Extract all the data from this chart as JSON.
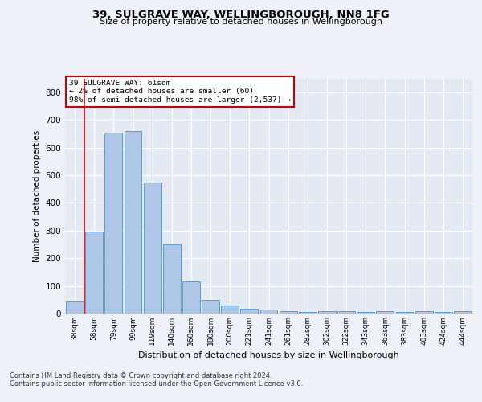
{
  "title1": "39, SULGRAVE WAY, WELLINGBOROUGH, NN8 1FG",
  "title2": "Size of property relative to detached houses in Wellingborough",
  "xlabel": "Distribution of detached houses by size in Wellingborough",
  "ylabel": "Number of detached properties",
  "categories": [
    "38sqm",
    "58sqm",
    "79sqm",
    "99sqm",
    "119sqm",
    "140sqm",
    "160sqm",
    "180sqm",
    "200sqm",
    "221sqm",
    "241sqm",
    "261sqm",
    "282sqm",
    "302sqm",
    "322sqm",
    "343sqm",
    "363sqm",
    "383sqm",
    "403sqm",
    "424sqm",
    "444sqm"
  ],
  "values": [
    45,
    295,
    655,
    660,
    475,
    250,
    115,
    50,
    28,
    17,
    15,
    10,
    7,
    8,
    10,
    7,
    8,
    5,
    8,
    5,
    8
  ],
  "bar_color": "#aec6e8",
  "bar_edge_color": "#5a9fd4",
  "vline_color": "#cc0000",
  "annotation_text": "39 SULGRAVE WAY: 61sqm\n← 2% of detached houses are smaller (60)\n98% of semi-detached houses are larger (2,537) →",
  "annotation_box_color": "#cc0000",
  "ylim": [
    0,
    850
  ],
  "yticks": [
    0,
    100,
    200,
    300,
    400,
    500,
    600,
    700,
    800
  ],
  "bg_color": "#eef2f8",
  "plot_bg_color": "#e4eaf4",
  "footer1": "Contains HM Land Registry data © Crown copyright and database right 2024.",
  "footer2": "Contains public sector information licensed under the Open Government Licence v3.0."
}
